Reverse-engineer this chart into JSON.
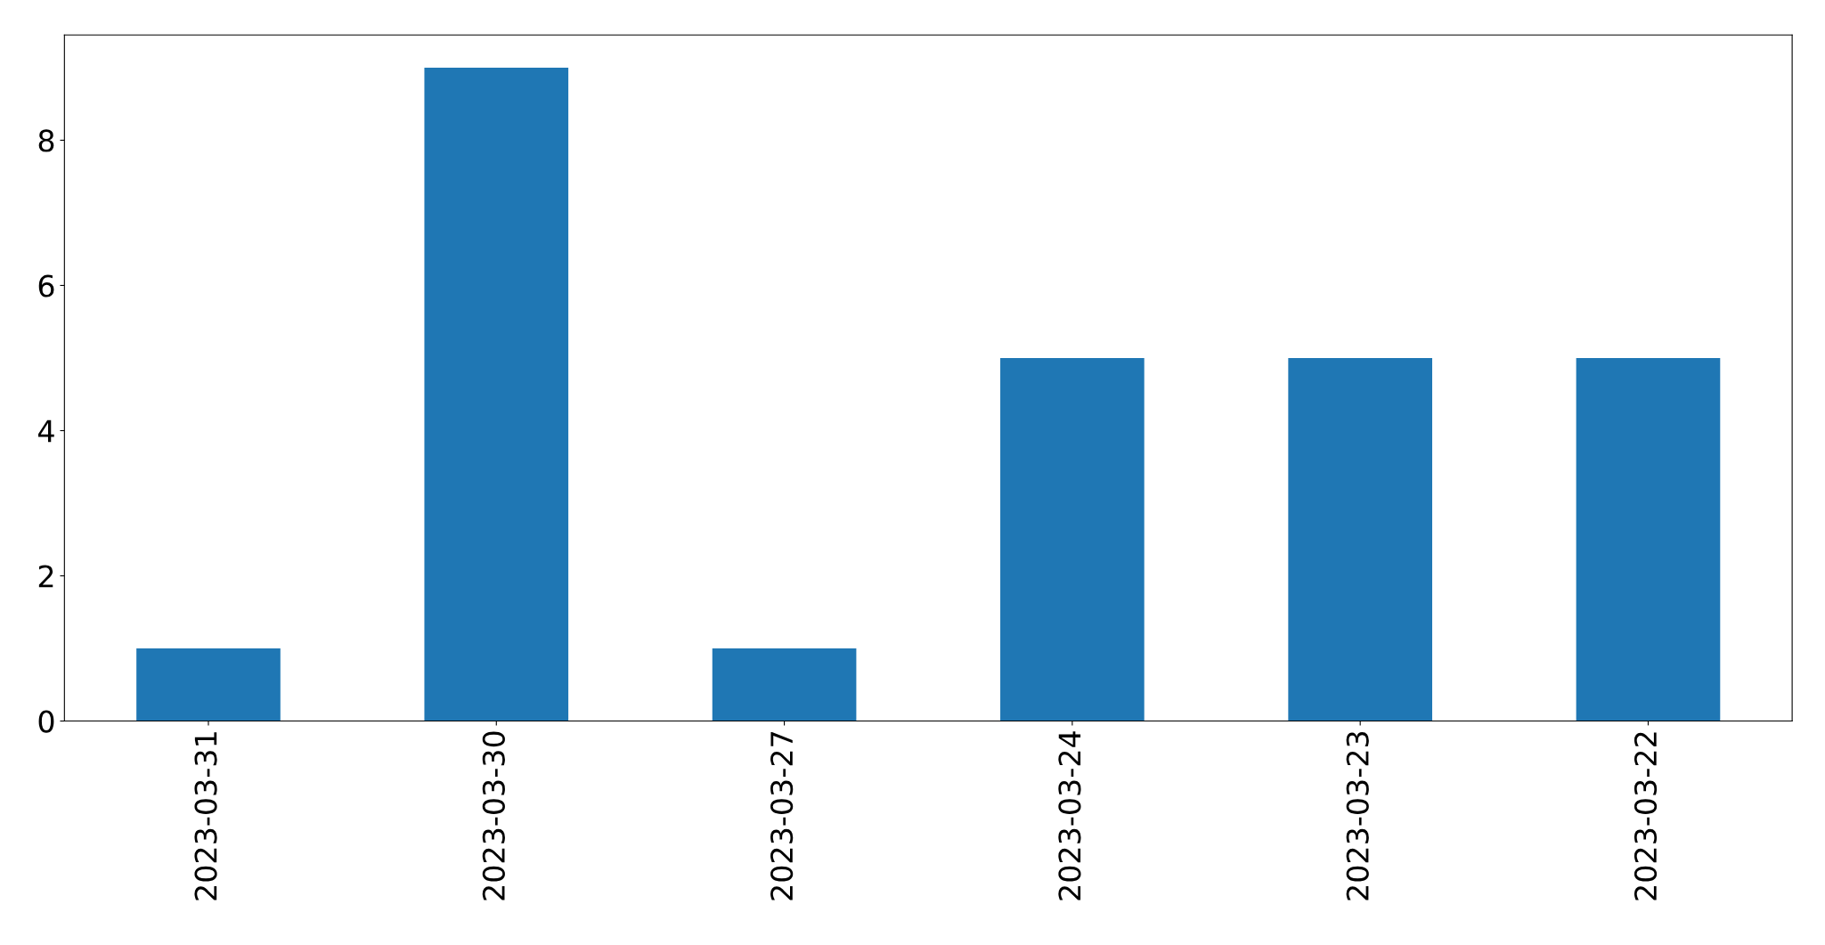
{
  "chart_data": {
    "type": "bar",
    "categories": [
      "2023-03-31",
      "2023-03-30",
      "2023-03-27",
      "2023-03-24",
      "2023-03-23",
      "2023-03-22"
    ],
    "values": [
      1,
      9,
      1,
      5,
      5,
      5
    ],
    "color": "#1f77b4",
    "ylim": [
      0,
      9.45
    ],
    "yticks": [
      0,
      2,
      4,
      6,
      8
    ]
  }
}
